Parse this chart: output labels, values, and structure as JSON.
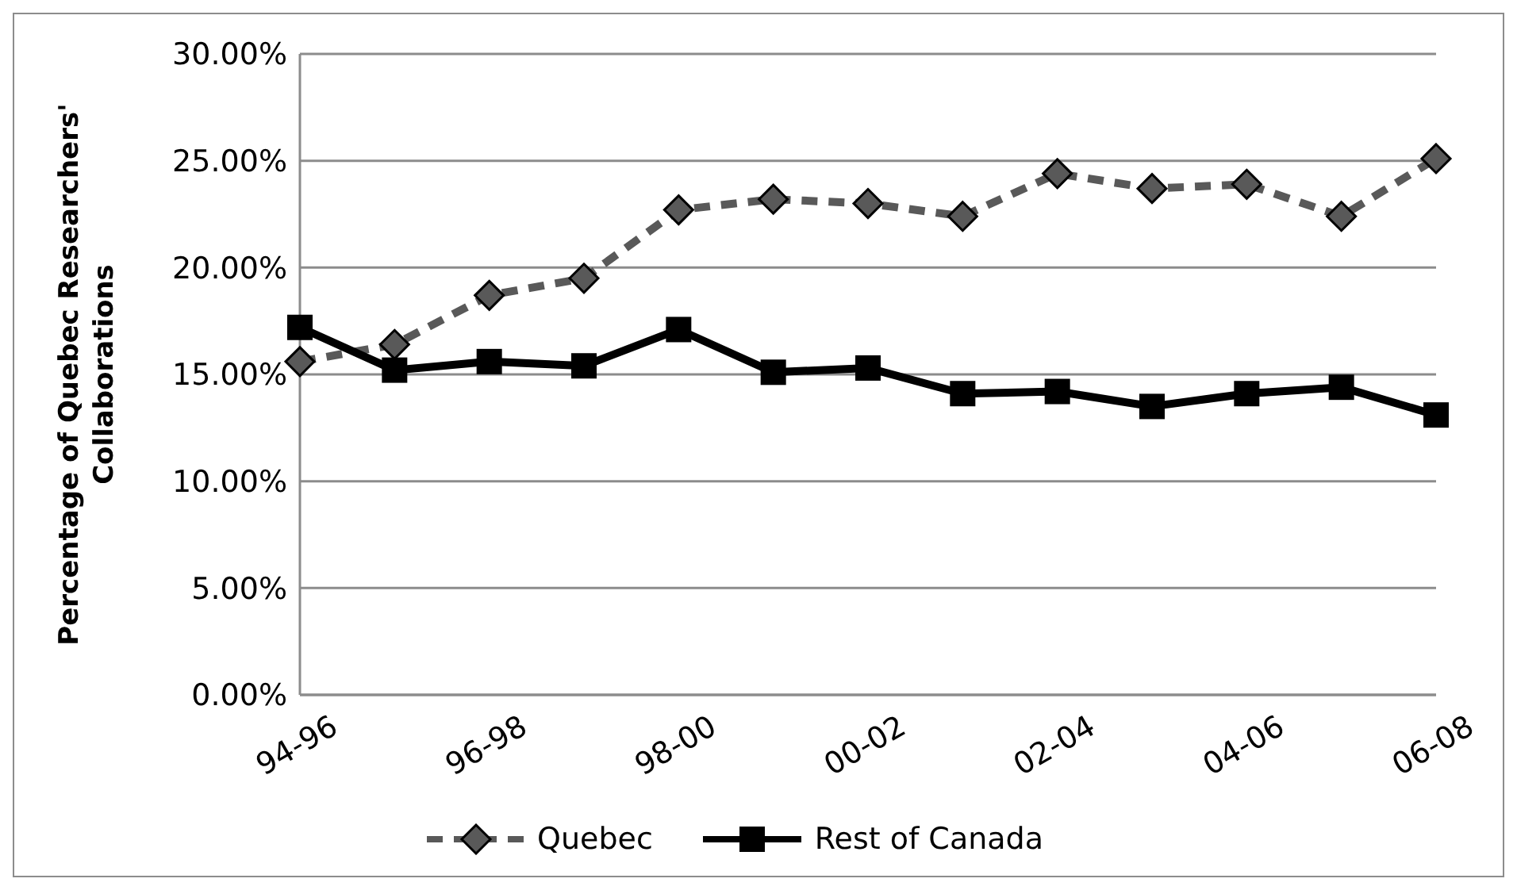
{
  "chart_data": {
    "type": "line",
    "ylabel": "Percentage of Quebec Researchers' Collaborations",
    "categories": [
      "94-96",
      null,
      "96-98",
      null,
      "98-00",
      null,
      "00-02",
      null,
      "02-04",
      null,
      "04-06",
      null,
      "06-08"
    ],
    "series": [
      {
        "name": "Quebec",
        "color": "#595959",
        "marker": "diamond",
        "line_style": "dashed",
        "values": [
          15.6,
          16.4,
          18.7,
          19.5,
          22.7,
          23.2,
          23.0,
          22.4,
          24.4,
          23.7,
          23.9,
          22.4,
          25.1
        ]
      },
      {
        "name": "Rest of Canada",
        "color": "#000000",
        "marker": "square",
        "line_style": "solid",
        "values": [
          17.2,
          15.2,
          15.6,
          15.4,
          17.1,
          15.1,
          15.3,
          14.1,
          14.2,
          13.5,
          14.1,
          14.4,
          13.1
        ]
      }
    ],
    "ylim": [
      0,
      30
    ],
    "yticks": [
      {
        "value": 0,
        "label": "0.00%"
      },
      {
        "value": 5,
        "label": "5.00%"
      },
      {
        "value": 10,
        "label": "10.00%"
      },
      {
        "value": 15,
        "label": "15.00%"
      },
      {
        "value": 20,
        "label": "20.00%"
      },
      {
        "value": 25,
        "label": "25.00%"
      },
      {
        "value": 30,
        "label": "30.00%"
      }
    ],
    "grid": "y",
    "legend": "bottom"
  }
}
